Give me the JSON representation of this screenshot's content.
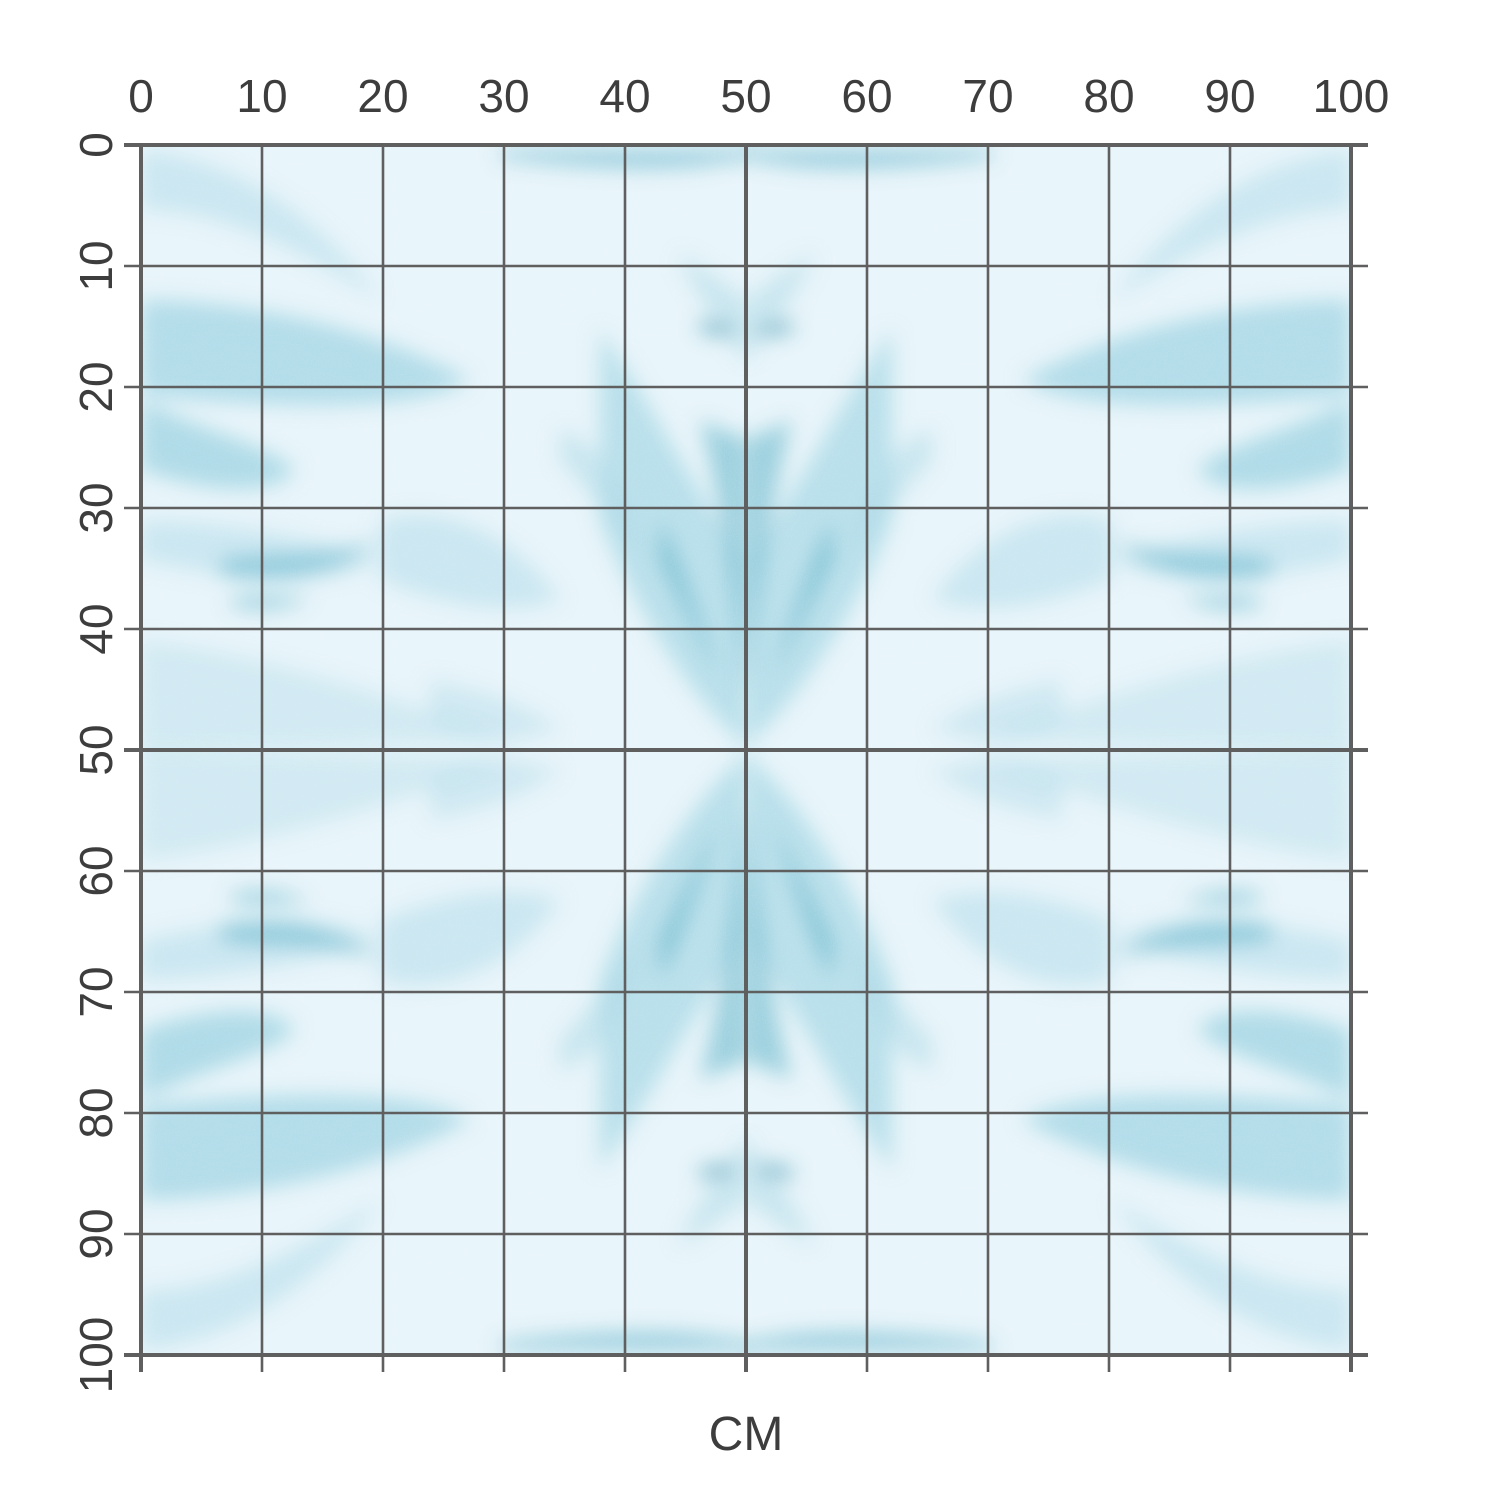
{
  "unit_label": "CM",
  "x_axis": {
    "ticks": [
      "0",
      "10",
      "20",
      "30",
      "40",
      "50",
      "60",
      "70",
      "80",
      "90",
      "100"
    ],
    "range": [
      0,
      100
    ]
  },
  "y_axis": {
    "ticks": [
      "0",
      "10",
      "20",
      "30",
      "40",
      "50",
      "60",
      "70",
      "80",
      "90",
      "100"
    ],
    "range": [
      0,
      100
    ]
  },
  "pattern": {
    "name": "marble-texture",
    "symmetry": "mirrored-horizontal-and-vertical"
  },
  "colors": {
    "grid": "#5f5f5f",
    "label": "#3d3d3d",
    "marble_light": "#e8f5fa",
    "marble_mid": "#a9d8e6",
    "marble_dark": "#5fb3c9",
    "marble_deep": "#3c98b3"
  }
}
